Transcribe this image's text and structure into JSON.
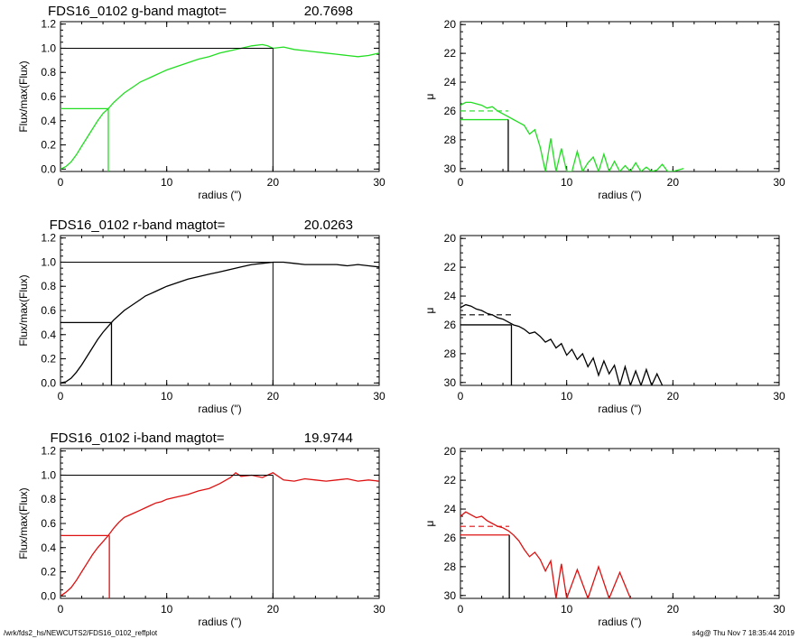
{
  "footer": {
    "path": "/wrk/fds2_hs/NEWCUTS2/FDS16_0102_reffplot",
    "stamp": "s4g@  Thu Nov  7 18:35:44 2019"
  },
  "colors": {
    "g": "#22dd22",
    "r": "#000000",
    "i": "#dd1111",
    "ref": "#000000"
  },
  "chart_data": [
    {
      "type": "line",
      "band": "g",
      "color": "#22dd22",
      "title_left": "FDS16_0102 g-band  magtot=",
      "title_value": "20.7698",
      "xlabel": "radius (\")",
      "ylabel": "Flux/max(Flux)",
      "xlim": [
        0,
        30
      ],
      "ylim": [
        -0.02,
        1.22
      ],
      "xticks": [
        "0",
        "10",
        "20",
        "30"
      ],
      "yticks": [
        "0.0",
        "0.2",
        "0.4",
        "0.6",
        "0.8",
        "1.0",
        "1.2"
      ],
      "x": [
        0,
        0.5,
        1,
        1.5,
        2,
        2.5,
        3,
        3.5,
        4,
        4.5,
        5,
        5.5,
        6,
        6.5,
        7,
        7.5,
        8,
        8.5,
        9,
        9.5,
        10,
        11,
        12,
        13,
        14,
        15,
        16,
        17,
        18,
        19,
        19.5,
        20,
        21,
        22,
        23,
        24,
        25,
        26,
        27,
        28,
        29,
        30
      ],
      "y": [
        0.0,
        0.02,
        0.06,
        0.12,
        0.19,
        0.26,
        0.33,
        0.4,
        0.46,
        0.5,
        0.55,
        0.59,
        0.63,
        0.66,
        0.69,
        0.72,
        0.74,
        0.76,
        0.78,
        0.8,
        0.82,
        0.85,
        0.88,
        0.91,
        0.93,
        0.96,
        0.98,
        1.0,
        1.02,
        1.03,
        1.02,
        1.0,
        1.01,
        0.99,
        0.98,
        0.97,
        0.96,
        0.95,
        0.94,
        0.93,
        0.94,
        0.96
      ],
      "r_eff": 4.5,
      "r_tot": 20.0,
      "sb": {
        "xlim": [
          0,
          30
        ],
        "ylim": [
          30.2,
          19.8
        ],
        "xticks": [
          "0",
          "10",
          "20",
          "30"
        ],
        "yticks": [
          "20",
          "22",
          "24",
          "26",
          "28",
          "30"
        ],
        "ylabel": "μ",
        "mu_eff": 26.6,
        "mu_mean": 26.0,
        "x": [
          0,
          0.5,
          1,
          1.5,
          2,
          2.5,
          3,
          3.5,
          4,
          4.5,
          5,
          5.5,
          6,
          6.5,
          7,
          7.5,
          8,
          8.5,
          9,
          9.5,
          10,
          10.5,
          11,
          11.5,
          12,
          12.5,
          13,
          13.5,
          14,
          14.5,
          15,
          15.5,
          16,
          16.5,
          17,
          17.5,
          18,
          18.5,
          19,
          19.5,
          20,
          21,
          29.8
        ],
        "y": [
          25.6,
          25.4,
          25.4,
          25.5,
          25.6,
          25.8,
          25.7,
          26.0,
          26.2,
          26.4,
          26.6,
          26.8,
          27.0,
          27.6,
          27.3,
          28.5,
          30.2,
          27.9,
          30.2,
          28.6,
          30.2,
          30.2,
          28.8,
          30.2,
          29.6,
          29.2,
          30.2,
          29.0,
          30.2,
          29.5,
          30.2,
          29.8,
          30.2,
          29.6,
          30.2,
          29.9,
          30.2,
          30.1,
          29.7,
          30.2,
          30.2,
          30.0,
          30.0
        ]
      }
    },
    {
      "type": "line",
      "band": "r",
      "color": "#000000",
      "title_left": "FDS16_0102 r-band  magtot=",
      "title_value": "20.0263",
      "xlabel": "radius (\")",
      "ylabel": "Flux/max(Flux)",
      "xlim": [
        0,
        30
      ],
      "ylim": [
        -0.02,
        1.22
      ],
      "xticks": [
        "0",
        "10",
        "20",
        "30"
      ],
      "yticks": [
        "0.0",
        "0.2",
        "0.4",
        "0.6",
        "0.8",
        "1.0",
        "1.2"
      ],
      "x": [
        0,
        0.5,
        1,
        1.5,
        2,
        2.5,
        3,
        3.5,
        4,
        4.5,
        5,
        5.5,
        6,
        6.5,
        7,
        7.5,
        8,
        8.5,
        9,
        9.5,
        10,
        11,
        12,
        13,
        14,
        15,
        16,
        17,
        18,
        19,
        20,
        21,
        22,
        23,
        24,
        25,
        26,
        27,
        28,
        29,
        30
      ],
      "y": [
        0.0,
        0.01,
        0.04,
        0.09,
        0.15,
        0.22,
        0.29,
        0.36,
        0.42,
        0.47,
        0.52,
        0.56,
        0.6,
        0.63,
        0.66,
        0.69,
        0.72,
        0.74,
        0.76,
        0.78,
        0.8,
        0.83,
        0.86,
        0.88,
        0.9,
        0.92,
        0.94,
        0.96,
        0.98,
        0.99,
        1.0,
        1.0,
        0.99,
        0.98,
        0.98,
        0.98,
        0.98,
        0.97,
        0.98,
        0.97,
        0.96
      ],
      "r_eff": 4.8,
      "r_tot": 20.0,
      "sb": {
        "xlim": [
          0,
          30
        ],
        "ylim": [
          30.2,
          19.8
        ],
        "xticks": [
          "0",
          "10",
          "20",
          "30"
        ],
        "yticks": [
          "20",
          "22",
          "24",
          "26",
          "28",
          "30"
        ],
        "ylabel": "μ",
        "mu_eff": 26.0,
        "mu_mean": 25.3,
        "x": [
          0,
          0.5,
          1,
          1.5,
          2,
          2.5,
          3,
          3.5,
          4,
          4.5,
          5,
          5.5,
          6,
          6.5,
          7,
          7.5,
          8,
          8.5,
          9,
          9.5,
          10,
          10.5,
          11,
          11.5,
          12,
          12.5,
          13,
          13.5,
          14,
          14.5,
          15,
          15.5,
          16,
          16.5,
          17,
          17.5,
          18,
          18.5,
          19,
          23,
          25.5
        ],
        "y": [
          24.8,
          24.6,
          24.7,
          24.9,
          25.0,
          25.2,
          25.3,
          25.5,
          25.6,
          25.8,
          26.0,
          26.1,
          26.3,
          26.6,
          26.5,
          26.8,
          27.2,
          27.0,
          27.6,
          27.3,
          28.1,
          27.7,
          28.4,
          28.0,
          28.9,
          28.3,
          29.5,
          28.5,
          29.4,
          28.8,
          30.2,
          28.9,
          30.2,
          29.2,
          30.2,
          29.1,
          30.2,
          29.4,
          30.2,
          29.2,
          29.4
        ]
      }
    },
    {
      "type": "line",
      "band": "i",
      "color": "#dd1111",
      "title_left": "FDS16_0102 i-band  magtot=",
      "title_value": "19.9744",
      "xlabel": "radius (\")",
      "ylabel": "Flux/max(Flux)",
      "xlim": [
        0,
        30
      ],
      "ylim": [
        -0.02,
        1.22
      ],
      "xticks": [
        "0",
        "10",
        "20",
        "30"
      ],
      "yticks": [
        "0.0",
        "0.2",
        "0.4",
        "0.6",
        "0.8",
        "1.0",
        "1.2"
      ],
      "x": [
        0,
        0.5,
        1,
        1.5,
        2,
        2.5,
        3,
        3.5,
        4,
        4.5,
        5,
        5.5,
        6,
        6.5,
        7,
        7.5,
        8,
        8.5,
        9,
        9.5,
        10,
        11,
        12,
        13,
        14,
        15,
        16,
        16.5,
        17,
        18,
        19,
        20,
        21,
        22,
        23,
        24,
        25,
        26,
        27,
        28,
        29,
        30
      ],
      "y": [
        0.0,
        0.03,
        0.07,
        0.13,
        0.2,
        0.27,
        0.34,
        0.4,
        0.45,
        0.5,
        0.56,
        0.61,
        0.65,
        0.67,
        0.69,
        0.71,
        0.73,
        0.75,
        0.77,
        0.78,
        0.8,
        0.82,
        0.84,
        0.87,
        0.89,
        0.93,
        0.98,
        1.02,
        0.99,
        1.0,
        0.98,
        1.02,
        0.96,
        0.95,
        0.97,
        0.96,
        0.95,
        0.96,
        0.97,
        0.95,
        0.96,
        0.95
      ],
      "r_eff": 4.6,
      "r_tot": 20.0,
      "sb": {
        "xlim": [
          0,
          30
        ],
        "ylim": [
          30.2,
          19.8
        ],
        "xticks": [
          "0",
          "10",
          "20",
          "30"
        ],
        "yticks": [
          "20",
          "22",
          "24",
          "26",
          "28",
          "30"
        ],
        "ylabel": "μ",
        "mu_eff": 25.8,
        "mu_mean": 25.2,
        "x": [
          0,
          0.5,
          1,
          1.5,
          2,
          2.5,
          3,
          3.5,
          4,
          4.5,
          5,
          5.5,
          6,
          6.5,
          7,
          7.5,
          8,
          8.5,
          9,
          9.5,
          10,
          11,
          12,
          13,
          14,
          15,
          16,
          19,
          23,
          25,
          28
        ],
        "y": [
          24.5,
          24.2,
          24.4,
          24.6,
          24.5,
          24.8,
          25.0,
          25.2,
          25.3,
          25.5,
          25.8,
          26.2,
          26.8,
          27.3,
          27.0,
          27.5,
          28.3,
          27.6,
          30.2,
          27.8,
          30.2,
          28.2,
          30.2,
          28.0,
          30.2,
          28.4,
          30.2,
          28.6,
          30.2,
          28.5,
          29.0
        ]
      }
    }
  ]
}
